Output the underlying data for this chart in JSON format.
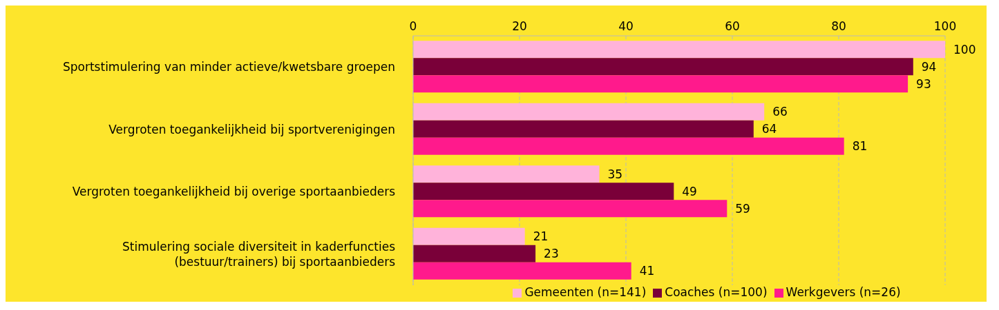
{
  "chart_data": {
    "type": "bar",
    "orientation": "horizontal",
    "categories": [
      "Sportstimulering van minder actieve/kwetsbare groepen",
      "Vergroten toegankelijkheid bij sportverenigingen",
      "Vergroten toegankelijkheid bij overige sportaanbieders",
      "Stimulering sociale diversiteit in kaderfuncties\n(bestuur/trainers) bij sportaanbieders"
    ],
    "series": [
      {
        "name": "Gemeenten (n=141)",
        "color": "#ffb3da",
        "values": [
          100,
          66,
          35,
          21
        ]
      },
      {
        "name": "Coaches (n=100)",
        "color": "#7a0039",
        "values": [
          94,
          64,
          49,
          23
        ]
      },
      {
        "name": "Werkgevers (n=26)",
        "color": "#ff1a8c",
        "values": [
          93,
          81,
          59,
          41
        ]
      }
    ],
    "xlim": [
      0,
      100
    ],
    "xticks": [
      0,
      20,
      40,
      60,
      80,
      100
    ],
    "grid": "x",
    "legend": "bottom",
    "data_labels": true
  }
}
